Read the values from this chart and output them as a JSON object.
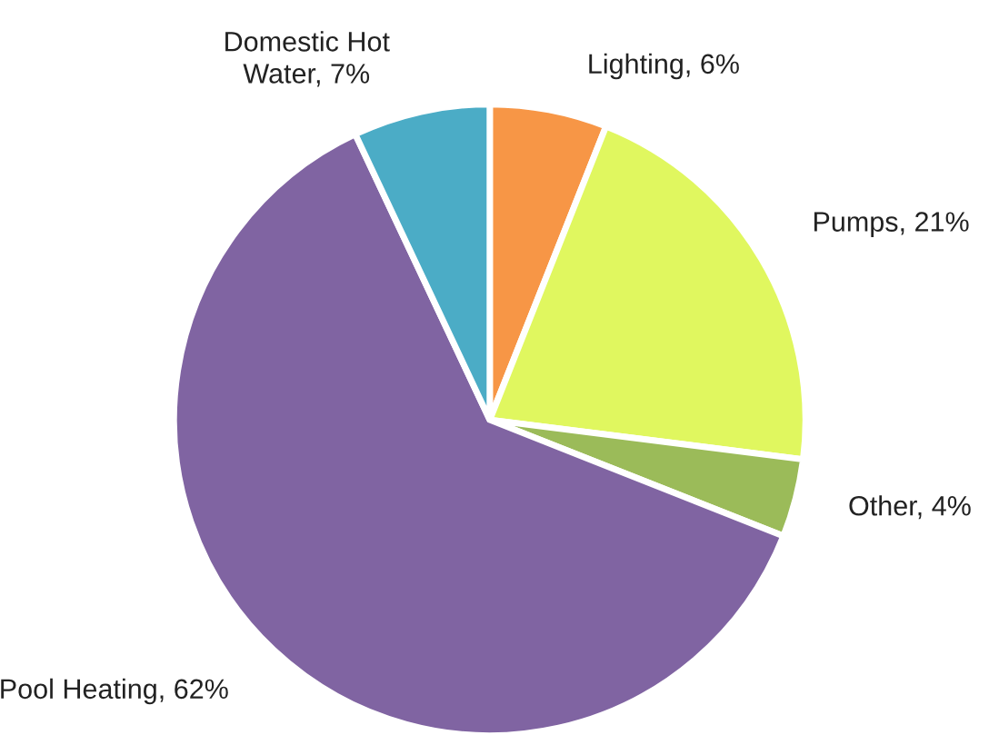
{
  "chart_data": {
    "type": "pie",
    "categories": [
      "Lighting",
      "Pumps",
      "Other",
      "Pool Heating",
      "Domestic Hot Water"
    ],
    "values": [
      6,
      21,
      4,
      62,
      7
    ],
    "value_labels": [
      "6%",
      "21%",
      "4%",
      "62%",
      "7%"
    ],
    "colors": [
      "#f79646",
      "#e0f75f",
      "#9bbb59",
      "#8064a2",
      "#4bacc6"
    ],
    "legend": false
  }
}
